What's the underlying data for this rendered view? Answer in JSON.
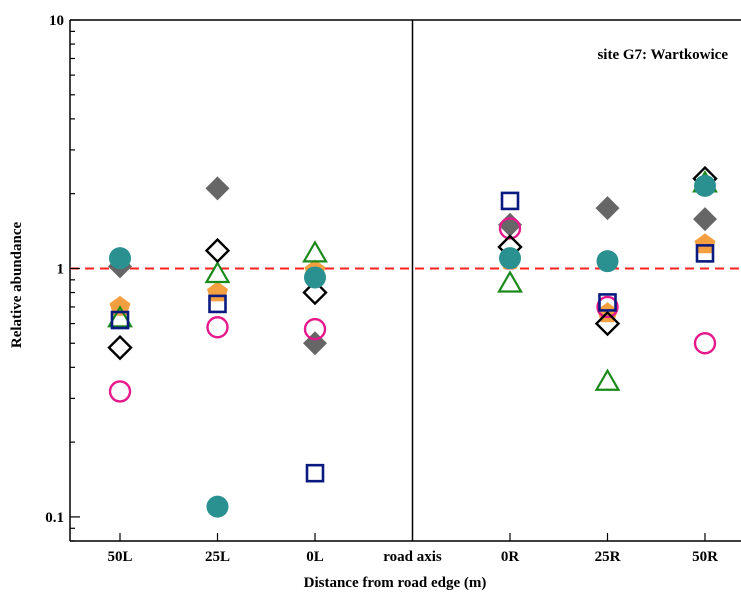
{
  "chart_data": {
    "type": "scatter",
    "title": "",
    "annotation": "site G7: Wartkowice",
    "xlabel": "Distance from road edge (m)",
    "ylabel": "Relative abundance",
    "y_scale": "log",
    "ylim": [
      0.08,
      10
    ],
    "y_ticks": [
      {
        "value": 0.1,
        "label": "0.1"
      },
      {
        "value": 1,
        "label": "1"
      },
      {
        "value": 10,
        "label": "10"
      }
    ],
    "categories": [
      "50L",
      "25L",
      "0L",
      "road axis",
      "0R",
      "25R",
      "50R"
    ],
    "road_axis_category": "road axis",
    "reference_line": {
      "value": 1,
      "color": "#ff2020",
      "style": "dashed"
    },
    "grid": false,
    "legend": "none",
    "series": [
      {
        "marker": "filled-diamond",
        "color": "#666666",
        "values": {
          "50L": 1.02,
          "25L": 2.1,
          "0L": 0.5,
          "0R": 1.5,
          "25R": 1.75,
          "50R": 1.58
        }
      },
      {
        "marker": "filled-pentagon",
        "color": "#f5a040",
        "values": {
          "50L": 0.7,
          "25L": 0.8,
          "0L": 0.98,
          "0R": 1.08,
          "25R": 0.66,
          "50R": 1.25
        }
      },
      {
        "marker": "open-triangle",
        "color": "#1a8a1a",
        "values": {
          "50L": 0.63,
          "25L": 0.95,
          "0L": 1.15,
          "0R": 0.87,
          "25R": 0.35,
          "50R": 2.2
        }
      },
      {
        "marker": "open-circle",
        "color": "#e6198c",
        "values": {
          "50L": 0.32,
          "25L": 0.58,
          "0L": 0.57,
          "0R": 1.45,
          "25R": 0.7,
          "50R": 0.5
        }
      },
      {
        "marker": "open-diamond",
        "color": "#000000",
        "values": {
          "50L": 0.48,
          "25L": 1.18,
          "0L": 0.8,
          "0R": 1.22,
          "25R": 0.6,
          "50R": 2.3
        }
      },
      {
        "marker": "open-square",
        "color": "#0a1a80",
        "values": {
          "50L": 0.62,
          "25L": 0.72,
          "0L": 0.15,
          "0R": 1.87,
          "25R": 0.73,
          "50R": 1.15
        }
      },
      {
        "marker": "filled-circle",
        "color": "#2a9090",
        "values": {
          "50L": 1.1,
          "25L": 0.11,
          "0L": 0.92,
          "0R": 1.1,
          "25R": 1.07,
          "50R": 2.15
        }
      }
    ]
  }
}
